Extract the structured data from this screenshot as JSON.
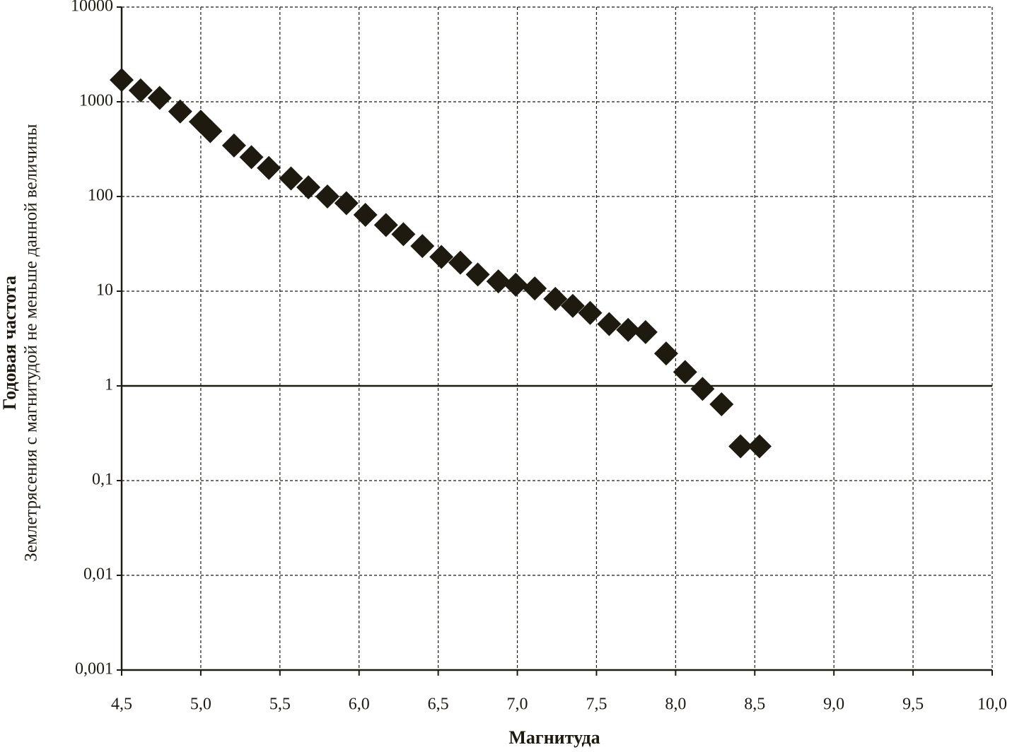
{
  "chart_data": {
    "type": "scatter",
    "x_label": "Магнитуда",
    "y_label_title": "Годовая частота",
    "y_label": "Землетрясения с магнитудой не меньше данной величины",
    "log_y": true,
    "grid": true,
    "x_axis_crosses": 1,
    "marker": "diamond",
    "color": "#1e1a10",
    "x": [
      4.5,
      4.62,
      4.74,
      4.87,
      5.0,
      5.06,
      5.21,
      5.32,
      5.43,
      5.57,
      5.68,
      5.8,
      5.92,
      6.04,
      6.17,
      6.28,
      6.4,
      6.52,
      6.64,
      6.75,
      6.88,
      6.99,
      7.11,
      7.24,
      7.35,
      7.46,
      7.58,
      7.7,
      7.81,
      7.94,
      8.06,
      8.17,
      8.29,
      8.41,
      8.53
    ],
    "values": [
      1700,
      1320,
      1100,
      790,
      615,
      490,
      345,
      260,
      200,
      155,
      125,
      100,
      85,
      64,
      50,
      40,
      30,
      23,
      20,
      15,
      12.7,
      11.7,
      10.7,
      8.3,
      7,
      5.9,
      4.5,
      3.9,
      3.7,
      2.2,
      1.4,
      0.93,
      0.64,
      0.23,
      0.23
    ],
    "xlim": [
      4.5,
      10
    ],
    "xticks": [
      {
        "value": 4.5,
        "label": "4,5"
      },
      {
        "value": 5,
        "label": "5,0"
      },
      {
        "value": 5.5,
        "label": "5,5"
      },
      {
        "value": 6,
        "label": "6,0"
      },
      {
        "value": 6.5,
        "label": "6,5"
      },
      {
        "value": 7,
        "label": "7,0"
      },
      {
        "value": 7.5,
        "label": "7,5"
      },
      {
        "value": 8,
        "label": "8,0"
      },
      {
        "value": 8.5,
        "label": "8,5"
      },
      {
        "value": 9,
        "label": "9,0"
      },
      {
        "value": 9.5,
        "label": "9,5"
      },
      {
        "value": 10,
        "label": "10,0"
      }
    ],
    "ylim": [
      0.001,
      10000
    ],
    "yticks": [
      {
        "value": 0.001,
        "label": "0,001"
      },
      {
        "value": 0.01,
        "label": "0,01"
      },
      {
        "value": 0.1,
        "label": "0,1"
      },
      1,
      10,
      100,
      1000,
      10000
    ]
  }
}
